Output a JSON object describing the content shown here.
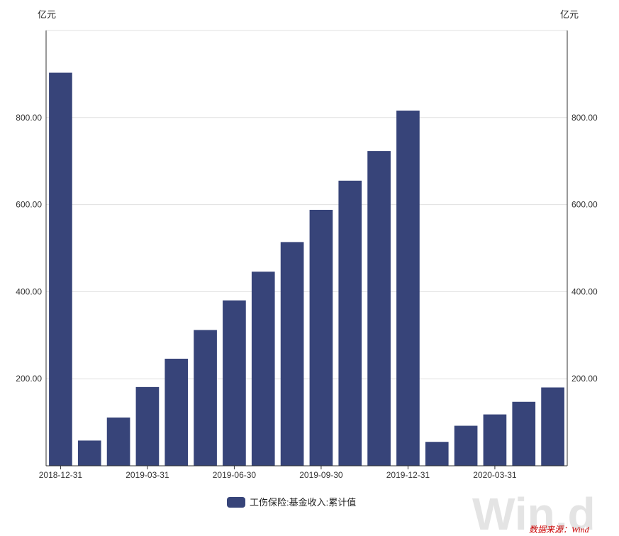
{
  "chart_data": {
    "type": "bar",
    "unit_left": "亿元",
    "unit_right": "亿元",
    "x": [
      "2018-12-31",
      "2019-01-31",
      "2019-02-28",
      "2019-03-31",
      "2019-04-30",
      "2019-05-31",
      "2019-06-30",
      "2019-07-31",
      "2019-08-31",
      "2019-09-30",
      "2019-10-31",
      "2019-11-30",
      "2019-12-31",
      "2020-01-31",
      "2020-02-29",
      "2020-03-31",
      "2020-04-30",
      "2020-05-31"
    ],
    "x_tick_labels": [
      "2018-12-31",
      "2019-03-31",
      "2019-06-30",
      "2019-09-30",
      "2019-12-31",
      "2020-03-31"
    ],
    "series": [
      {
        "name": "工伤保险:基金收入:累计值",
        "values": [
          903,
          58,
          111,
          181,
          246,
          312,
          380,
          446,
          514,
          588,
          655,
          723,
          816,
          55,
          92,
          118,
          147,
          180
        ]
      }
    ],
    "y_ticks": [
      "200.00",
      "400.00",
      "600.00",
      "800.00"
    ],
    "ylim": [
      0,
      1000
    ],
    "grid": true,
    "legend_position": "bottom",
    "colors": {
      "bar": "#374479",
      "grid": "#e0e0e0",
      "axis": "#333333"
    },
    "watermark": "Win.d",
    "source_note": "数据来源：Wind"
  }
}
